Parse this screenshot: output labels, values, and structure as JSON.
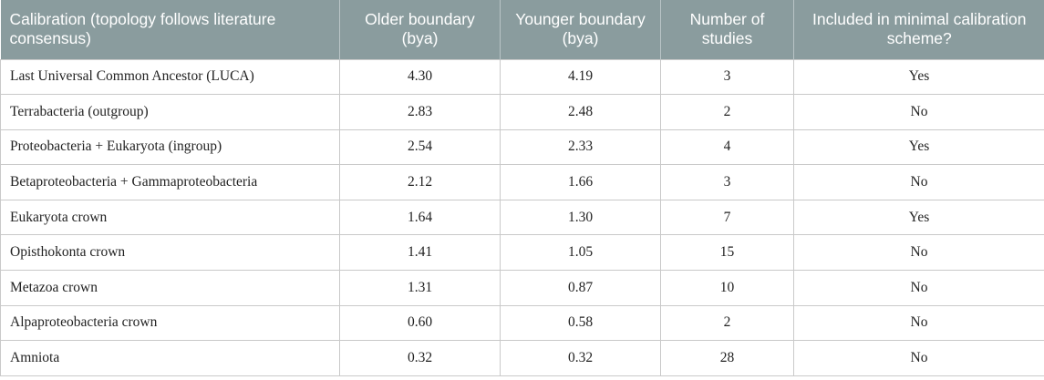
{
  "table": {
    "headers": [
      "Calibration (topology follows literature consensus)",
      "Older boundary (bya)",
      "Younger boundary (bya)",
      "Number of studies",
      "Included in minimal calibration scheme?"
    ],
    "rows": [
      [
        "Last Universal Common Ancestor (LUCA)",
        "4.30",
        "4.19",
        "3",
        "Yes"
      ],
      [
        "Terrabacteria (outgroup)",
        "2.83",
        "2.48",
        "2",
        "No"
      ],
      [
        "Proteobacteria + Eukaryota (ingroup)",
        "2.54",
        "2.33",
        "4",
        "Yes"
      ],
      [
        "Betaproteobacteria + Gammaproteobacteria",
        "2.12",
        "1.66",
        "3",
        "No"
      ],
      [
        "Eukaryota crown",
        "1.64",
        "1.30",
        "7",
        "Yes"
      ],
      [
        "Opisthokonta crown",
        "1.41",
        "1.05",
        "15",
        "No"
      ],
      [
        "Metazoa crown",
        "1.31",
        "0.87",
        "10",
        "No"
      ],
      [
        "Alpaproteobacteria crown",
        "0.60",
        "0.58",
        "2",
        "No"
      ],
      [
        "Amniota",
        "0.32",
        "0.32",
        "28",
        "No"
      ]
    ]
  },
  "colors": {
    "header_background": "#8a9c9e",
    "header_text": "#ffffff",
    "border": "#c9c9c9"
  }
}
